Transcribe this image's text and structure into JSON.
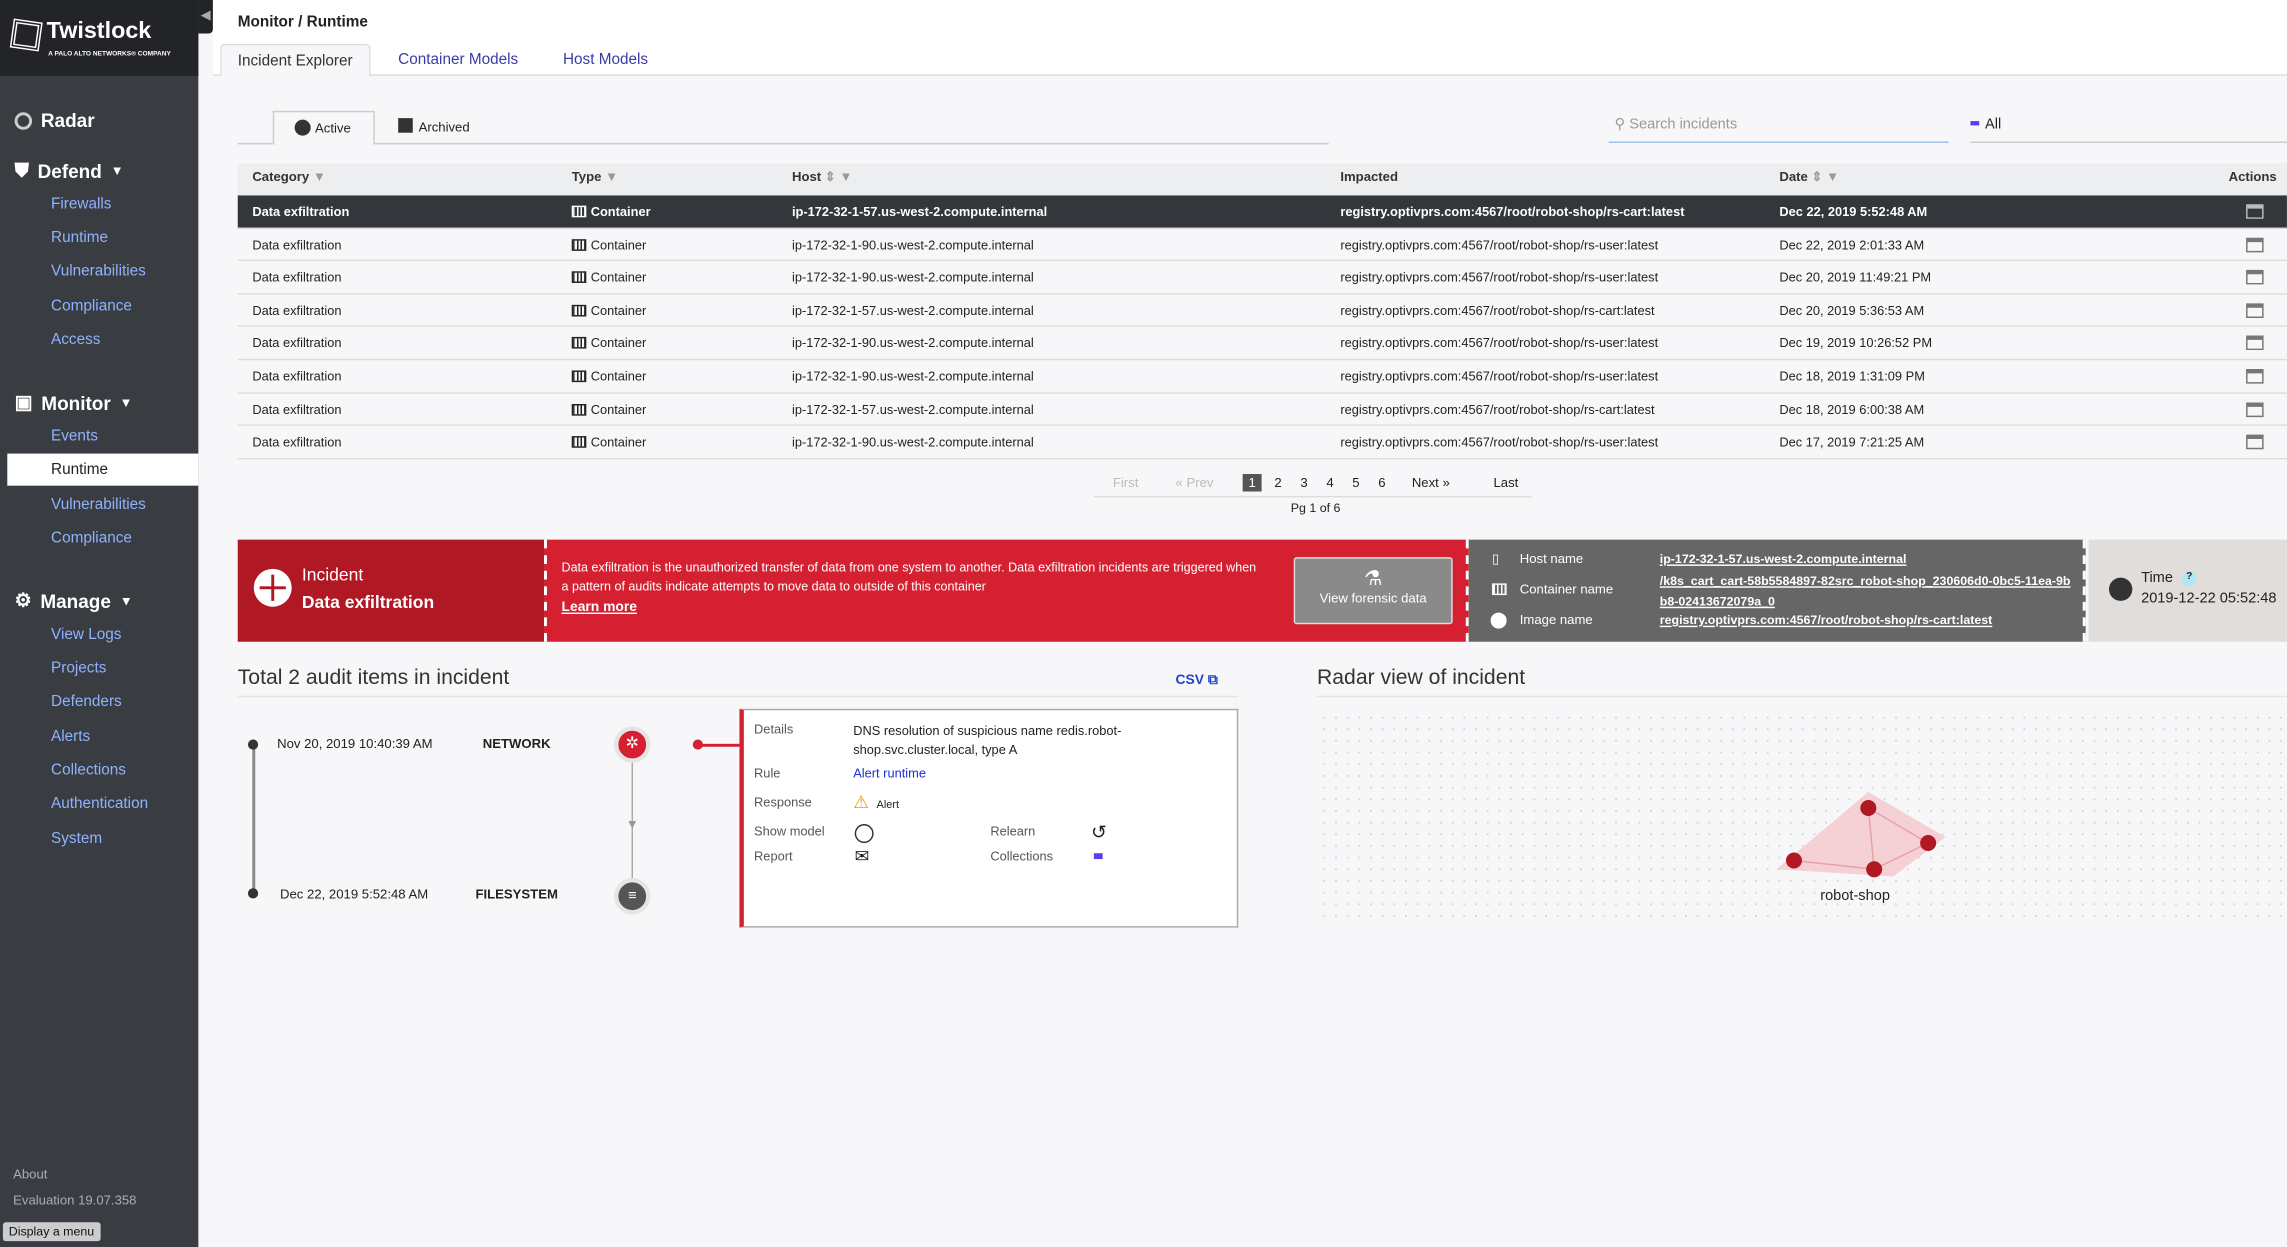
{
  "sidebar": {
    "brand": "Twistlock",
    "brand_sub": "A PALO ALTO NETWORKS® COMPANY",
    "radar": "Radar",
    "defend": "Defend",
    "defend_items": [
      "Firewalls",
      "Runtime",
      "Vulnerabilities",
      "Compliance",
      "Access"
    ],
    "monitor": "Monitor",
    "monitor_items": [
      "Events",
      "Runtime",
      "Vulnerabilities",
      "Compliance"
    ],
    "manage": "Manage",
    "manage_items": [
      "View Logs",
      "Projects",
      "Defenders",
      "Alerts",
      "Collections",
      "Authentication",
      "System"
    ],
    "about": "About",
    "version": "Evaluation 19.07.358",
    "tooltip": "Display a menu"
  },
  "header": {
    "breadcrumb": "Monitor / Runtime",
    "tabs": [
      "Incident Explorer",
      "Container Models",
      "Host Models"
    ]
  },
  "subtabs": [
    "Active",
    "Archived"
  ],
  "search": {
    "placeholder": "Search incidents"
  },
  "filter": "All",
  "table": {
    "columns": [
      "Category",
      "Type",
      "Host",
      "Impacted",
      "Date",
      "Actions"
    ],
    "rows": [
      [
        "Data exfiltration",
        "Container",
        "ip-172-32-1-57.us-west-2.compute.internal",
        "registry.optivprs.com:4567/root/robot-shop/rs-cart:latest",
        "Dec 22, 2019 5:52:48 AM"
      ],
      [
        "Data exfiltration",
        "Container",
        "ip-172-32-1-90.us-west-2.compute.internal",
        "registry.optivprs.com:4567/root/robot-shop/rs-user:latest",
        "Dec 22, 2019 2:01:33 AM"
      ],
      [
        "Data exfiltration",
        "Container",
        "ip-172-32-1-90.us-west-2.compute.internal",
        "registry.optivprs.com:4567/root/robot-shop/rs-user:latest",
        "Dec 20, 2019 11:49:21 PM"
      ],
      [
        "Data exfiltration",
        "Container",
        "ip-172-32-1-57.us-west-2.compute.internal",
        "registry.optivprs.com:4567/root/robot-shop/rs-cart:latest",
        "Dec 20, 2019 5:36:53 AM"
      ],
      [
        "Data exfiltration",
        "Container",
        "ip-172-32-1-90.us-west-2.compute.internal",
        "registry.optivprs.com:4567/root/robot-shop/rs-user:latest",
        "Dec 19, 2019 10:26:52 PM"
      ],
      [
        "Data exfiltration",
        "Container",
        "ip-172-32-1-90.us-west-2.compute.internal",
        "registry.optivprs.com:4567/root/robot-shop/rs-user:latest",
        "Dec 18, 2019 1:31:09 PM"
      ],
      [
        "Data exfiltration",
        "Container",
        "ip-172-32-1-57.us-west-2.compute.internal",
        "registry.optivprs.com:4567/root/robot-shop/rs-cart:latest",
        "Dec 18, 2019 6:00:38 AM"
      ],
      [
        "Data exfiltration",
        "Container",
        "ip-172-32-1-90.us-west-2.compute.internal",
        "registry.optivprs.com:4567/root/robot-shop/rs-user:latest",
        "Dec 17, 2019 7:21:25 AM"
      ]
    ]
  },
  "pagination": {
    "first": "First",
    "prev": "« Prev",
    "pages": [
      "1",
      "2",
      "3",
      "4",
      "5",
      "6"
    ],
    "current": 1,
    "next": "Next »",
    "last": "Last",
    "summary": "Pg 1 of 6"
  },
  "incident": {
    "label": "Incident",
    "name": "Data exfiltration",
    "description": "Data exfiltration is the unauthorized transfer of data from one system to another. Data exfiltration incidents are triggered when a pattern of audits indicate attempts to move data to outside of this container",
    "learn_more": "Learn more",
    "forensic_button": "View forensic data",
    "host_label": "Host name",
    "host": "ip-172-32-1-57.us-west-2.compute.internal",
    "container_label": "Container name",
    "container": "/k8s_cart_cart-58b5584897-82src_robot-shop_230606d0-0bc5-11ea-9bb8-02413672079a_0",
    "image_label": "Image name",
    "image": "registry.optivprs.com:4567/root/robot-shop/rs-cart:latest",
    "time_label": "Time",
    "time": "2019-12-22 05:52:48"
  },
  "audit": {
    "title": "Total 2 audit items in incident",
    "csv": "CSV",
    "items": [
      {
        "date": "Nov 20, 2019 10:40:39 AM",
        "type": "NETWORK"
      },
      {
        "date": "Dec 22, 2019 5:52:48 AM",
        "type": "FILESYSTEM"
      }
    ],
    "details": {
      "details_label": "Details",
      "details": "DNS resolution of suspicious name redis.robot-shop.svc.cluster.local, type A",
      "rule_label": "Rule",
      "rule": "Alert runtime",
      "response_label": "Response",
      "response": "Alert",
      "show_model": "Show model",
      "relearn": "Relearn",
      "report": "Report",
      "collections": "Collections"
    }
  },
  "radar": {
    "title": "Radar view of incident",
    "cluster": "robot-shop"
  },
  "colors": {
    "incident_red": "#d42030",
    "incident_dark": "#b01824",
    "link": "#3b3ba6",
    "collection": "#5b3cf0"
  }
}
